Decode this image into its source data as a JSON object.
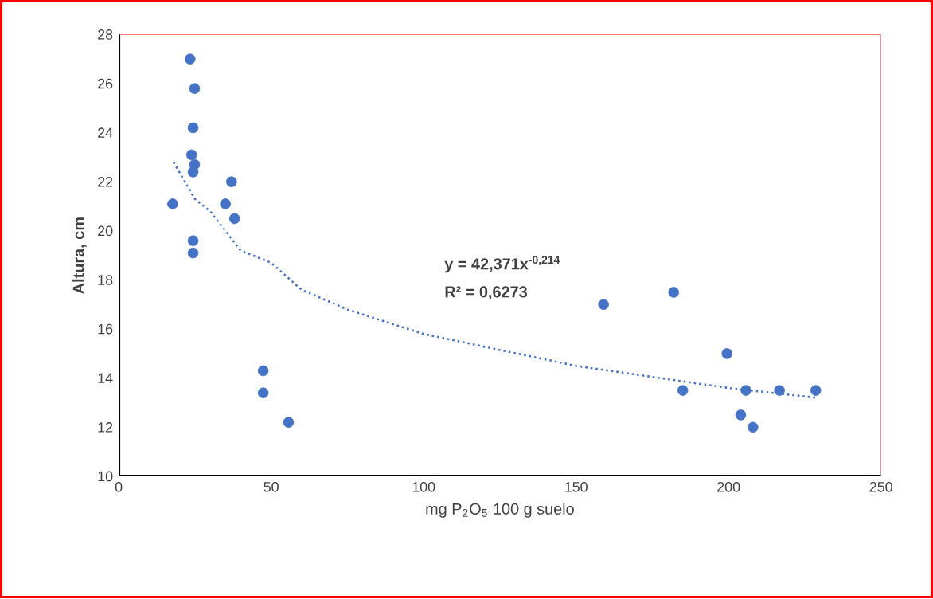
{
  "chart_data": {
    "type": "scatter",
    "xlabel": "mg P$_{2}$O$_{5}$ 100 g suelo",
    "ylabel": "Altura, cm",
    "annotations": [
      "y = 42,371x$^{-0,214}$",
      "R² = 0,6273"
    ],
    "xlim": [
      0,
      250
    ],
    "ylim": [
      10,
      28
    ],
    "xticks": [
      0,
      50,
      100,
      150,
      200,
      250
    ],
    "yticks": [
      10,
      12,
      14,
      16,
      18,
      20,
      22,
      24,
      26,
      28
    ],
    "marker": "circle",
    "series": [
      {
        "color": "#4472c4",
        "x": [
          23.4,
          24.9,
          24.4,
          23.9,
          24.9,
          24.4,
          17.7,
          37.0,
          35.0,
          38.0,
          24.4,
          24.4,
          47.4,
          47.4,
          55.7,
          159.0,
          182.0,
          185.0,
          199.5,
          205.7,
          204.0,
          208.0,
          216.7,
          228.6
        ],
        "values": [
          27.0,
          25.8,
          24.2,
          23.1,
          22.7,
          22.4,
          21.1,
          22.0,
          21.1,
          20.5,
          19.6,
          19.1,
          14.3,
          13.4,
          12.2,
          17.0,
          17.5,
          13.5,
          15.0,
          13.5,
          12.5,
          12.0,
          13.5,
          13.5
        ]
      },
      {
        "type": "line",
        "color": "#4472c4",
        "line_style": "dotted",
        "marker": "none",
        "x": [
          18,
          25,
          30,
          40,
          50,
          60,
          75,
          100,
          150,
          200,
          229
        ],
        "values": [
          22.8,
          21.3,
          20.8,
          19.2,
          18.7,
          17.6,
          16.8,
          15.8,
          14.5,
          13.6,
          13.2
        ]
      }
    ]
  }
}
